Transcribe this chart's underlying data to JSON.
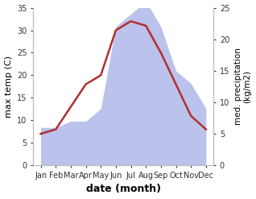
{
  "months": [
    "Jan",
    "Feb",
    "Mar",
    "Apr",
    "May",
    "Jun",
    "Jul",
    "Aug",
    "Sep",
    "Oct",
    "Nov",
    "Dec"
  ],
  "temp": [
    7,
    8,
    13,
    18,
    20,
    30,
    32,
    31,
    25,
    18,
    11,
    8
  ],
  "precip": [
    6,
    6,
    7,
    7,
    9,
    22,
    24,
    26,
    22,
    15,
    13,
    9
  ],
  "temp_color": "#b03030",
  "precip_color": "#b0b8e8",
  "temp_ylim": [
    0,
    35
  ],
  "precip_ylim": [
    0,
    25
  ],
  "temp_yticks": [
    0,
    5,
    10,
    15,
    20,
    25,
    30,
    35
  ],
  "precip_yticks": [
    0,
    5,
    10,
    15,
    20,
    25
  ],
  "xlabel": "date (month)",
  "ylabel_left": "max temp (C)",
  "ylabel_right": "med. precipitation\n(kg/m2)",
  "bg_color": "#ffffff",
  "line_width": 1.8
}
